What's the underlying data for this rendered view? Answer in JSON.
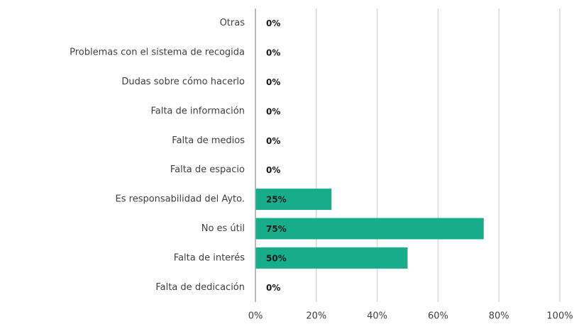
{
  "chart_data": {
    "type": "hbar",
    "categories": [
      "Otras",
      "Problemas con el sistema de recogida",
      "Dudas sobre cómo hacerlo",
      "Falta de información",
      "Falta de medios",
      "Falta de espacio",
      "Es responsabilidad del Ayto.",
      "No es útil",
      "Falta de interés",
      "Falta de dedicación"
    ],
    "values": [
      0,
      0,
      0,
      0,
      0,
      0,
      25,
      75,
      50,
      0
    ],
    "value_labels": [
      "0%",
      "0%",
      "0%",
      "0%",
      "0%",
      "0%",
      "25%",
      "75%",
      "50%",
      "0%"
    ],
    "color": "#17ad8b",
    "xlim": [
      0,
      100
    ],
    "xticks": [
      {
        "value": 0,
        "label": "0%"
      },
      {
        "value": 20,
        "label": "20%"
      },
      {
        "value": 40,
        "label": "40%"
      },
      {
        "value": 60,
        "label": "60%"
      },
      {
        "value": 80,
        "label": "80%"
      },
      {
        "value": 100,
        "label": "100%"
      }
    ],
    "grid": true
  }
}
